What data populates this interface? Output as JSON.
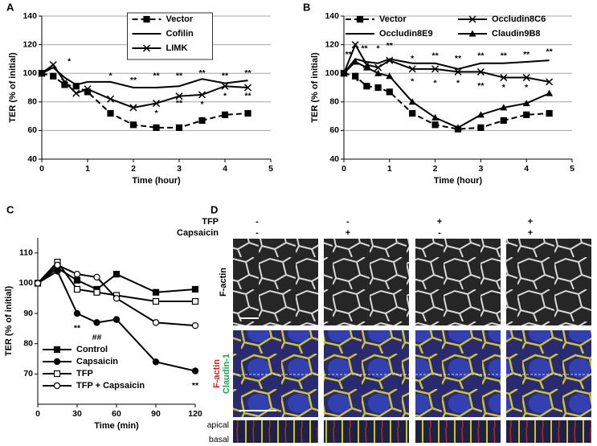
{
  "chart_data": [
    {
      "type": "line",
      "panel_label": "A",
      "xlabel": "Time (hour)",
      "ylabel": "TER (% of initial)",
      "x": [
        0,
        0.25,
        0.5,
        0.75,
        1,
        1.5,
        2,
        2.5,
        3,
        3.5,
        4,
        4.5
      ],
      "xlim": [
        0,
        5
      ],
      "xticks": [
        0,
        1,
        2,
        3,
        4,
        5
      ],
      "ylim": [
        40,
        140
      ],
      "yticks": [
        40,
        60,
        80,
        100,
        120,
        140
      ],
      "grid": true,
      "legend": "upper center",
      "legend_columns": 1,
      "series": [
        {
          "name": "Vector",
          "color": "#000000",
          "marker": "square",
          "dash": true,
          "values": [
            100,
            98,
            92,
            91,
            87,
            72,
            64,
            62,
            62,
            67,
            71,
            72
          ]
        },
        {
          "name": "Cofilin",
          "color": "#000000",
          "marker": "none",
          "dash": false,
          "values": [
            100,
            104,
            97,
            92,
            94,
            94,
            90,
            90,
            91,
            96,
            93,
            95
          ]
        },
        {
          "name": "LIMK",
          "color": "#000000",
          "marker": "x",
          "dash": false,
          "values": [
            100,
            106,
            94,
            86,
            89,
            82,
            76,
            79,
            84,
            85,
            91,
            90
          ]
        }
      ],
      "annotations": [
        {
          "text": "*",
          "x": 0.6,
          "y": 108
        },
        {
          "text": "*",
          "x": 1.5,
          "y": 98
        },
        {
          "text": "**",
          "x": 2,
          "y": 95
        },
        {
          "text": "**",
          "x": 2.5,
          "y": 98
        },
        {
          "text": "**",
          "x": 3,
          "y": 98
        },
        {
          "text": "**",
          "x": 3.5,
          "y": 100
        },
        {
          "text": "**",
          "x": 4,
          "y": 98
        },
        {
          "text": "**",
          "x": 4.5,
          "y": 100
        },
        {
          "text": "*",
          "x": 2.5,
          "y": 72
        },
        {
          "text": "**",
          "x": 3,
          "y": 79
        },
        {
          "text": "*",
          "x": 3.5,
          "y": 78
        },
        {
          "text": "*",
          "x": 4,
          "y": 84
        },
        {
          "text": "**",
          "x": 4.5,
          "y": 84
        }
      ]
    },
    {
      "type": "line",
      "panel_label": "B",
      "xlabel": "Time (hour)",
      "ylabel": "TER (% of initial)",
      "x": [
        0,
        0.25,
        0.5,
        0.75,
        1,
        1.5,
        2,
        2.5,
        3,
        3.5,
        4,
        4.5
      ],
      "xlim": [
        0,
        5
      ],
      "xticks": [
        0,
        1,
        2,
        3,
        4,
        5
      ],
      "ylim": [
        40,
        140
      ],
      "yticks": [
        40,
        60,
        80,
        100,
        120,
        140
      ],
      "grid": true,
      "legend": "upper center",
      "legend_columns": 2,
      "series": [
        {
          "name": "Vector",
          "color": "#000000",
          "marker": "square",
          "dash": true,
          "values": [
            100,
            98,
            91,
            90,
            87,
            72,
            64,
            61,
            62,
            67,
            71,
            72
          ]
        },
        {
          "name": "Occludin8C6",
          "color": "#000000",
          "marker": "x",
          "dash": false,
          "values": [
            100,
            120,
            106,
            104,
            109,
            103,
            103,
            101,
            101,
            97,
            97,
            94
          ]
        },
        {
          "name": "Occludin8E9",
          "color": "#000000",
          "marker": "none",
          "dash": false,
          "values": [
            100,
            110,
            108,
            107,
            110,
            107,
            107,
            103,
            107,
            107,
            108,
            109
          ]
        },
        {
          "name": "Claudin9B8",
          "color": "#000000",
          "marker": "triangle",
          "dash": false,
          "values": [
            100,
            108,
            104,
            100,
            98,
            80,
            69,
            62,
            71,
            76,
            79,
            86
          ]
        }
      ],
      "annotations": [
        {
          "text": "**",
          "x": 0.1,
          "y": 113
        },
        {
          "text": "**",
          "x": 0.45,
          "y": 117
        },
        {
          "text": "*",
          "x": 0.75,
          "y": 117
        },
        {
          "text": "**",
          "x": 1,
          "y": 119
        },
        {
          "text": "*",
          "x": 1.5,
          "y": 110
        },
        {
          "text": "**",
          "x": 2,
          "y": 112
        },
        {
          "text": "**",
          "x": 2.5,
          "y": 110
        },
        {
          "text": "**",
          "x": 3,
          "y": 112
        },
        {
          "text": "**",
          "x": 3.5,
          "y": 112
        },
        {
          "text": "**",
          "x": 4,
          "y": 113
        },
        {
          "text": "**",
          "x": 4.5,
          "y": 115
        },
        {
          "text": "*",
          "x": 0.3,
          "y": 94
        },
        {
          "text": "*",
          "x": 1.5,
          "y": 94
        },
        {
          "text": "*",
          "x": 2,
          "y": 93
        },
        {
          "text": "*",
          "x": 2.5,
          "y": 93
        },
        {
          "text": "**",
          "x": 3,
          "y": 91
        },
        {
          "text": "*",
          "x": 3.5,
          "y": 90
        },
        {
          "text": "*",
          "x": 4,
          "y": 90
        }
      ]
    },
    {
      "type": "line",
      "panel_label": "C",
      "xlabel": "Time (min)",
      "ylabel": "TER (% of initial)",
      "x": [
        0,
        15,
        30,
        45,
        60,
        90,
        120
      ],
      "xlim": [
        0,
        120
      ],
      "xticks": [
        0,
        30,
        60,
        90,
        120
      ],
      "ylim": [
        60,
        115
      ],
      "yticks": [
        70,
        80,
        90,
        100,
        110
      ],
      "grid": false,
      "legend": "lower left",
      "legend_columns": 1,
      "series": [
        {
          "name": "Control",
          "color": "#000000",
          "marker": "square",
          "dash": false,
          "values": [
            100,
            105,
            101,
            98,
            103,
            97,
            98
          ]
        },
        {
          "name": "Capsaicin",
          "color": "#000000",
          "marker": "circle",
          "dash": false,
          "values": [
            100,
            104,
            90,
            87,
            88,
            74,
            71
          ]
        },
        {
          "name": "TFP",
          "color": "#000000",
          "marker": "open-square",
          "dash": false,
          "values": [
            100,
            107,
            98,
            97,
            96,
            94,
            94
          ]
        },
        {
          "name": "TFP + Capsaicin",
          "color": "#000000",
          "marker": "open-circle",
          "dash": false,
          "values": [
            100,
            106,
            103,
            102,
            95,
            87,
            86
          ]
        }
      ],
      "annotations": [
        {
          "text": "**",
          "x": 30,
          "y": 85
        },
        {
          "text": "##",
          "x": 45,
          "y": 82
        },
        {
          "text": "**",
          "x": 120,
          "y": 66
        }
      ]
    }
  ],
  "panel_d": {
    "label": "D",
    "conditions": [
      {
        "name": "TFP",
        "signs": [
          "-",
          "-",
          "+",
          "+"
        ]
      },
      {
        "name": "Capsaicin",
        "signs": [
          "-",
          "+",
          "-",
          "+"
        ]
      }
    ],
    "rows": {
      "grayscale": "F-actin",
      "merge_red": "F-actin",
      "merge_green": "Claudin-1",
      "apical": "apical",
      "basal": "basal"
    }
  }
}
